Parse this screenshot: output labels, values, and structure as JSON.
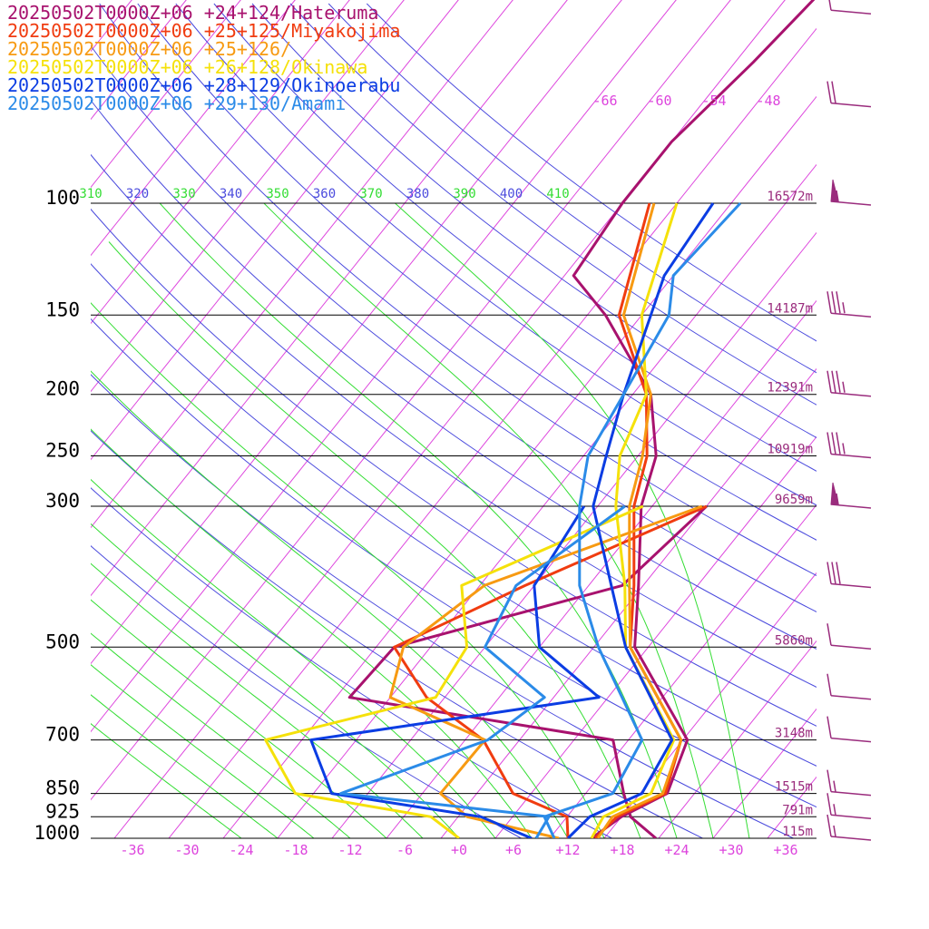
{
  "chart_data": {
    "type": "line",
    "title": "",
    "xlabel": "",
    "ylabel": "",
    "x_unit": "temperature °C (skewed)",
    "y_scale": "log pressure",
    "xlim": [
      -40,
      40
    ],
    "ylim": [
      1000,
      100
    ],
    "pressure_ticks": [
      {
        "label": "100",
        "p": 100,
        "height": "16572m"
      },
      {
        "label": "150",
        "p": 150,
        "height": "14187m"
      },
      {
        "label": "200",
        "p": 200,
        "height": "12391m"
      },
      {
        "label": "250",
        "p": 250,
        "height": "10919m"
      },
      {
        "label": "300",
        "p": 300,
        "height": "9659m"
      },
      {
        "label": "500",
        "p": 500,
        "height": "5860m"
      },
      {
        "label": "700",
        "p": 700,
        "height": "3148m"
      },
      {
        "label": "850",
        "p": 850,
        "height": "1515m"
      },
      {
        "label": "925",
        "p": 925,
        "height": "791m"
      },
      {
        "label": "1000",
        "p": 1000,
        "height": "115m"
      }
    ],
    "temperature_ticks": [
      "-36",
      "-30",
      "-24",
      "-18",
      "-12",
      "-6",
      "+0",
      "+6",
      "+12",
      "+18",
      "+24",
      "+30",
      "+36"
    ],
    "upper_temperature_labels": [
      "-66",
      "-60",
      "-54",
      "-48"
    ],
    "theta_labels": [
      "310",
      "320",
      "330",
      "340",
      "350",
      "360",
      "370",
      "380",
      "390",
      "400",
      "410"
    ],
    "colors": {
      "isotherm": "#dd44dd",
      "dry_adiabat": "#4b4bdd",
      "moist_adiabat": "#33dd33",
      "isobar": "#000000",
      "wind_barb": "#9a2c7d",
      "temp_tick": "#dd44dd",
      "height_label": "#9a2c7d"
    },
    "series": [
      {
        "name": "20250502T0000Z+06 +24+124/Hateruma",
        "color": "#a8126e",
        "temperature": [
          [
            1000,
            14.6
          ],
          [
            925,
            16.0
          ],
          [
            850,
            19.0
          ],
          [
            700,
            16.5
          ],
          [
            500,
            2.5
          ],
          [
            400,
            -2.5
          ],
          [
            300,
            -9.2
          ],
          [
            250,
            -12.0
          ],
          [
            200,
            -18.0
          ],
          [
            150,
            -30.0
          ],
          [
            130,
            -37.0
          ],
          [
            100,
            -38.0
          ],
          [
            80,
            -38.0
          ],
          [
            60,
            -36.0
          ],
          [
            40,
            -34.0
          ]
        ],
        "dewpoint": [
          [
            1000,
            21.7
          ],
          [
            925,
            17.0
          ],
          [
            850,
            14.2
          ],
          [
            700,
            8.3
          ],
          [
            600,
            -24.5
          ],
          [
            500,
            -24.0
          ],
          [
            400,
            -4.3
          ],
          [
            300,
            -2.0
          ]
        ]
      },
      {
        "name": "20250502T0000Z+06 +25+125/Miyakojima",
        "color": "#f03c10",
        "temperature": [
          [
            1000,
            15.0
          ],
          [
            925,
            15.5
          ],
          [
            850,
            18.8
          ],
          [
            700,
            15.8
          ],
          [
            500,
            2.0
          ],
          [
            400,
            -3.0
          ],
          [
            300,
            -10.0
          ],
          [
            250,
            -13.0
          ],
          [
            200,
            -18.5
          ],
          [
            150,
            -28.5
          ],
          [
            100,
            -35.0
          ]
        ],
        "dewpoint": [
          [
            1000,
            12.0
          ],
          [
            925,
            10.0
          ],
          [
            850,
            2.0
          ],
          [
            700,
            -6.0
          ],
          [
            600,
            -16.0
          ],
          [
            500,
            -24.0
          ],
          [
            400,
            -15.0
          ],
          [
            300,
            -2.0
          ]
        ]
      },
      {
        "name": "20250502T0000Z+06 +25+126/",
        "color": "#f79a12",
        "temperature": [
          [
            1000,
            15.3
          ],
          [
            925,
            15.0
          ],
          [
            850,
            18.5
          ],
          [
            700,
            15.8
          ],
          [
            500,
            2.0
          ],
          [
            400,
            -3.5
          ],
          [
            300,
            -10.5
          ],
          [
            250,
            -13.5
          ],
          [
            200,
            -18.0
          ],
          [
            150,
            -28.0
          ],
          [
            100,
            -34.5
          ]
        ],
        "dewpoint": [
          [
            1000,
            11.0
          ],
          [
            925,
            -1.0
          ],
          [
            850,
            -6.0
          ],
          [
            700,
            -5.8
          ],
          [
            600,
            -20.0
          ],
          [
            500,
            -23.0
          ],
          [
            400,
            -19.5
          ],
          [
            300,
            -2.5
          ]
        ]
      },
      {
        "name": "20250502T0000Z+06 +26+128/Okinawa",
        "color": "#f5e10a",
        "temperature": [
          [
            1000,
            14.6
          ],
          [
            925,
            14.0
          ],
          [
            850,
            17.2
          ],
          [
            700,
            15.0
          ],
          [
            500,
            1.5
          ],
          [
            400,
            -4.0
          ],
          [
            300,
            -12.0
          ],
          [
            250,
            -16.0
          ],
          [
            200,
            -18.5
          ],
          [
            150,
            -26.0
          ],
          [
            100,
            -32.0
          ]
        ],
        "dewpoint": [
          [
            1000,
            0.0
          ],
          [
            925,
            -5.0
          ],
          [
            850,
            -22.0
          ],
          [
            700,
            -30.0
          ],
          [
            600,
            -15.0
          ],
          [
            500,
            -16.0
          ],
          [
            400,
            -22.0
          ],
          [
            300,
            -9.0
          ]
        ]
      },
      {
        "name": "20250502T0000Z+06 +28+129/Okinoerabu",
        "color": "#0b3de3",
        "temperature": [
          [
            1000,
            12.0
          ],
          [
            925,
            12.5
          ],
          [
            850,
            16.2
          ],
          [
            700,
            14.8
          ],
          [
            500,
            1.5
          ],
          [
            400,
            -5.5
          ],
          [
            300,
            -14.5
          ],
          [
            250,
            -17.5
          ],
          [
            200,
            -21.0
          ],
          [
            150,
            -25.0
          ],
          [
            130,
            -27.0
          ],
          [
            100,
            -28.0
          ]
        ],
        "dewpoint": [
          [
            1000,
            8.0
          ],
          [
            925,
            0.5
          ],
          [
            850,
            -18.0
          ],
          [
            700,
            -25.0
          ],
          [
            600,
            3.0
          ],
          [
            500,
            -8.0
          ],
          [
            400,
            -14.0
          ],
          [
            300,
            -15.5
          ]
        ]
      },
      {
        "name": "20250502T0000Z+06 +29+130/Amami",
        "color": "#2b8be8",
        "temperature": [
          [
            1000,
            10.5
          ],
          [
            925,
            7.5
          ],
          [
            850,
            13.0
          ],
          [
            700,
            11.5
          ],
          [
            500,
            -1.5
          ],
          [
            400,
            -9.0
          ],
          [
            300,
            -16.0
          ],
          [
            250,
            -19.5
          ],
          [
            200,
            -21.0
          ],
          [
            150,
            -23.0
          ],
          [
            130,
            -26.0
          ],
          [
            100,
            -25.0
          ]
        ],
        "dewpoint": [
          [
            1000,
            8.5
          ],
          [
            925,
            8.0
          ],
          [
            850,
            -17.0
          ],
          [
            700,
            -5.5
          ],
          [
            600,
            -3.0
          ],
          [
            500,
            -14.0
          ],
          [
            400,
            -16.0
          ],
          [
            300,
            -11.0
          ]
        ]
      }
    ],
    "wind_barbs": [
      {
        "p": 1000,
        "speed_kt": 15
      },
      {
        "p": 925,
        "speed_kt": 15
      },
      {
        "p": 850,
        "speed_kt": 15
      },
      {
        "p": 700,
        "speed_kt": 10
      },
      {
        "p": 600,
        "speed_kt": 10
      },
      {
        "p": 500,
        "speed_kt": 10
      },
      {
        "p": 400,
        "speed_kt": 30
      },
      {
        "p": 300,
        "speed_kt": 55
      },
      {
        "p": 250,
        "speed_kt": 35
      },
      {
        "p": 200,
        "speed_kt": 35
      },
      {
        "p": 150,
        "speed_kt": 35
      },
      {
        "p": 100,
        "speed_kt": 55
      },
      {
        "p": 70,
        "speed_kt": 20
      },
      {
        "p": 50,
        "speed_kt": 10
      }
    ]
  }
}
